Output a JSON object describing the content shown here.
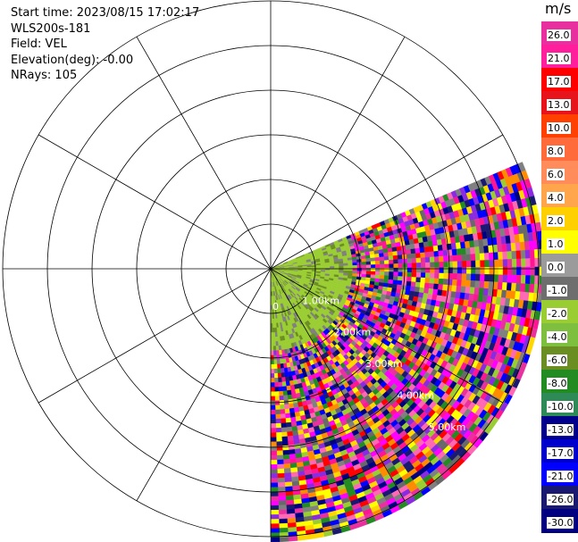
{
  "info": {
    "start_time": "Start time: 2023/08/15 17:02:17",
    "site": "WLS200s-181",
    "field": "Field: VEL",
    "elevation": "Elevation(deg): -0.00",
    "nrays": "NRays: 105"
  },
  "colorbar": {
    "unit": "m/s",
    "ticks": [
      "26.0",
      "21.0",
      "17.0",
      "13.0",
      "10.0",
      "8.0",
      "6.0",
      "4.0",
      "2.0",
      "1.0",
      "0.0",
      "-1.0",
      "-2.0",
      "-4.0",
      "-6.0",
      "-8.0",
      "-10.0",
      "-13.0",
      "-17.0",
      "-21.0",
      "-26.0",
      "-30.0"
    ],
    "colors": [
      "#e8319e",
      "#ff1f9d",
      "#ff0000",
      "#e8141c",
      "#ff4000",
      "#ff6b3a",
      "#ff8c5a",
      "#ffa64d",
      "#ffd000",
      "#ffff00",
      "#9b9b9b",
      "#6e6e6e",
      "#9acd32",
      "#7fbf3f",
      "#6b8e23",
      "#228b22",
      "#2e8b57",
      "#00008b",
      "#0000cd",
      "#0000ff",
      "#191970",
      "#000080"
    ]
  },
  "range_labels": [
    "1.00km",
    "2.00km",
    "3.00km",
    "4.00km",
    "5.00km"
  ],
  "range_label_zero": "0"
}
